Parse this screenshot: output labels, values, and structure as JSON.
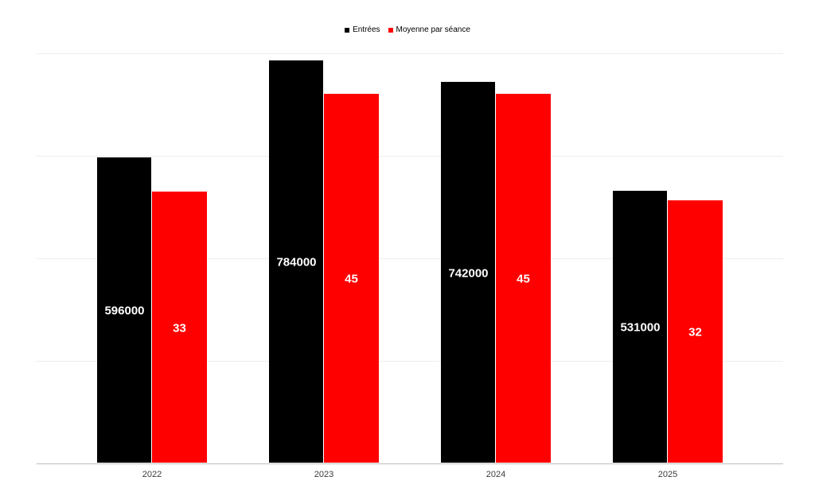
{
  "legend": {
    "items": [
      {
        "label": "Entrées",
        "color": "#000000"
      },
      {
        "label": "Moyenne par séance",
        "color": "#ff0000"
      }
    ]
  },
  "chart_data": {
    "type": "bar",
    "title": "",
    "categories": [
      "2022",
      "2023",
      "2024",
      "2025"
    ],
    "series": [
      {
        "name": "Entrées",
        "color": "#000000",
        "axis": "primary",
        "values": [
          596000,
          784000,
          742000,
          531000
        ]
      },
      {
        "name": "Moyenne par séance",
        "color": "#ff0000",
        "axis": "secondary",
        "values": [
          33,
          45,
          45,
          32
        ]
      }
    ],
    "primary_axis": {
      "min": 0,
      "max": 800000,
      "gridline_step": 200000,
      "labels_visible": false
    },
    "secondary_axis": {
      "min": 0,
      "max": 50,
      "labels_visible": false
    },
    "grid": true,
    "gridline_color": "#ededed",
    "axis_line_color": "#bdbdbd",
    "legend_position": "top-center",
    "data_labels": {
      "position": "inside-center",
      "color": "#ffffff",
      "bold": true
    }
  }
}
